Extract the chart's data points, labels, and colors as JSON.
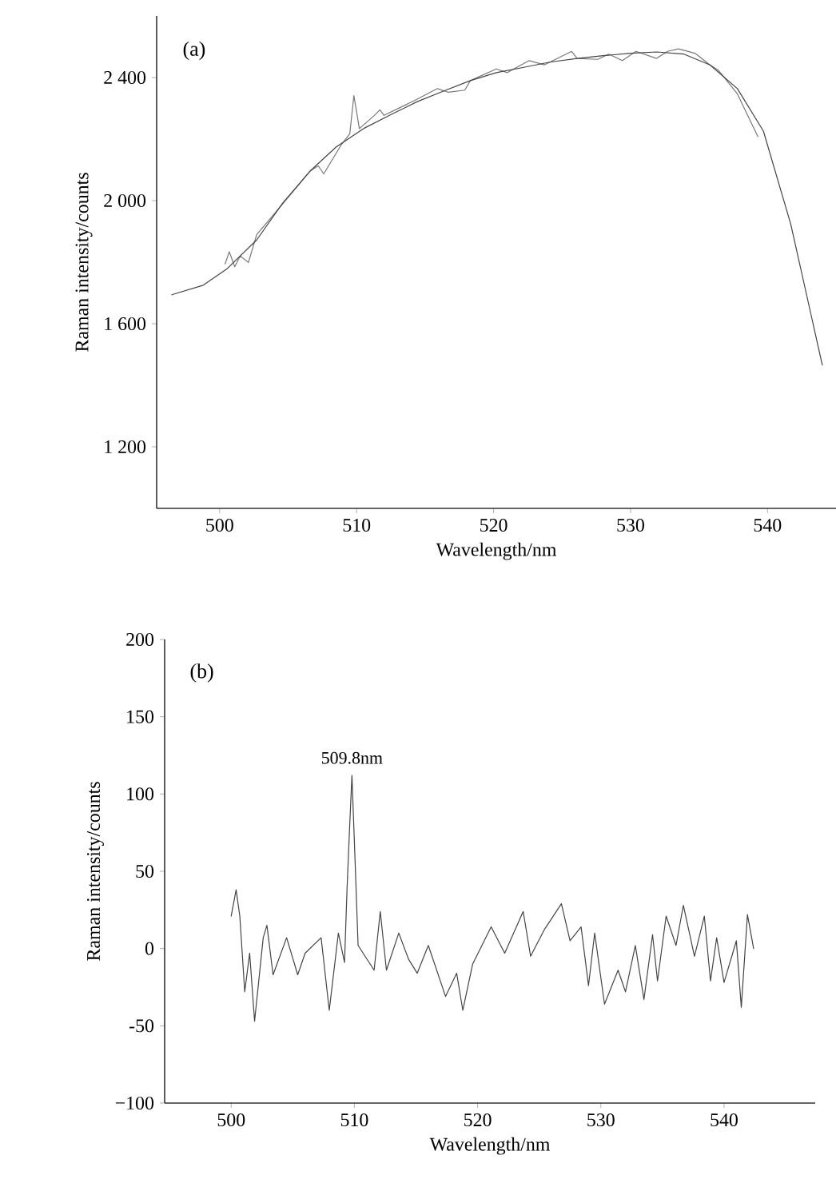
{
  "chart_data": [
    {
      "type": "line",
      "title": "(a)",
      "xlabel": "Wavelength/nm",
      "ylabel": "Raman intensity/counts",
      "xlim": [
        495.4,
        545
      ],
      "ylim": [
        1000,
        2600
      ],
      "xticks": [
        500,
        510,
        520,
        530,
        540
      ],
      "yticks": [
        {
          "value": 1200,
          "label": "1 200"
        },
        {
          "value": 1600,
          "label": "1 600"
        },
        {
          "value": 2000,
          "label": "2 000"
        },
        {
          "value": 2400,
          "label": "2 400"
        }
      ],
      "marker": "none",
      "line_style": "solid",
      "series": [
        {
          "color": "#777777",
          "x": [
            500.4,
            500.7,
            501.1,
            501.5,
            502.1,
            502.7,
            504.6,
            506.6,
            507.2,
            507.6,
            508.9,
            509.5,
            509.8,
            510.2,
            511.3,
            511.7,
            512.0,
            514.4,
            515.9,
            516.7,
            517.9,
            518.3,
            520.2,
            521.0,
            522.6,
            523.7,
            525.7,
            526.1,
            527.6,
            528.4,
            529.4,
            530.4,
            531.9,
            532.7,
            533.5,
            534.7,
            535.8,
            536.4,
            537.8,
            539.3
          ],
          "values": [
            1794,
            1834,
            1785,
            1820,
            1799,
            1889,
            1989,
            2096,
            2113,
            2087,
            2183,
            2217,
            2341,
            2234,
            2277,
            2295,
            2277,
            2329,
            2364,
            2352,
            2359,
            2390,
            2428,
            2416,
            2455,
            2441,
            2485,
            2462,
            2459,
            2476,
            2455,
            2485,
            2462,
            2485,
            2493,
            2479,
            2441,
            2424,
            2347,
            2208
          ]
        },
        {
          "color": "#444444",
          "x": [
            496.5,
            498.8,
            500.5,
            502.7,
            504.6,
            506.6,
            508.5,
            510.5,
            512.4,
            514.4,
            516.3,
            518.3,
            520.2,
            522.2,
            524.1,
            526.1,
            528.0,
            530.0,
            531.9,
            533.9,
            535.8,
            537.8,
            539.7,
            541.7,
            544.0
          ],
          "values": [
            1694,
            1725,
            1777,
            1872,
            1992,
            2096,
            2174,
            2234,
            2277,
            2321,
            2355,
            2390,
            2416,
            2433,
            2450,
            2462,
            2471,
            2479,
            2483,
            2476,
            2441,
            2364,
            2226,
            1923,
            1466
          ]
        }
      ]
    },
    {
      "type": "line",
      "title": "(b)",
      "xlabel": "Wavelength/nm",
      "ylabel": "Raman intensity/counts",
      "xlim": [
        494.6,
        547.4
      ],
      "ylim": [
        -100,
        200
      ],
      "xticks": [
        500,
        510,
        520,
        530,
        540
      ],
      "yticks": [
        {
          "value": -100,
          "label": "−100"
        },
        -50,
        0,
        50,
        100,
        150,
        200
      ],
      "marker": "none",
      "line_style": "solid",
      "annotations": [
        {
          "text": "509.8nm",
          "x": 509.8,
          "y": 112
        }
      ],
      "series": [
        {
          "color": "#444444",
          "x": [
            500.0,
            500.4,
            500.7,
            501.1,
            501.5,
            501.9,
            502.6,
            502.9,
            503.4,
            504.5,
            505.4,
            506.0,
            507.3,
            507.96,
            508.7,
            509.2,
            509.4,
            509.6,
            509.8,
            510.0,
            510.3,
            511.6,
            512.1,
            512.6,
            513.6,
            514.4,
            515.1,
            516.0,
            517.4,
            518.3,
            518.8,
            519.6,
            521.1,
            522.2,
            523.7,
            524.3,
            525.4,
            526.8,
            527.5,
            528.4,
            529.0,
            529.5,
            530.3,
            531.4,
            532.0,
            532.8,
            533.5,
            534.2,
            534.6,
            535.3,
            536.1,
            536.7,
            537.6,
            538.4,
            538.9,
            539.4,
            540.0,
            541.0,
            541.4,
            541.9,
            542.4
          ],
          "values": [
            21,
            38,
            21,
            -28,
            -3,
            -47,
            7,
            15,
            -17,
            7,
            -17,
            -3,
            7,
            -40,
            10,
            -9,
            38,
            76,
            112,
            69,
            2,
            -14,
            24,
            -14,
            10,
            -7,
            -16,
            2,
            -31,
            -16,
            -40,
            -10,
            14,
            -3,
            24,
            -5,
            12,
            29,
            5,
            14,
            -24,
            10,
            -36,
            -14,
            -28,
            2,
            -33,
            9,
            -21,
            21,
            2,
            28,
            -5,
            21,
            -21,
            7,
            -22,
            5,
            -38,
            22,
            0
          ]
        }
      ]
    }
  ]
}
